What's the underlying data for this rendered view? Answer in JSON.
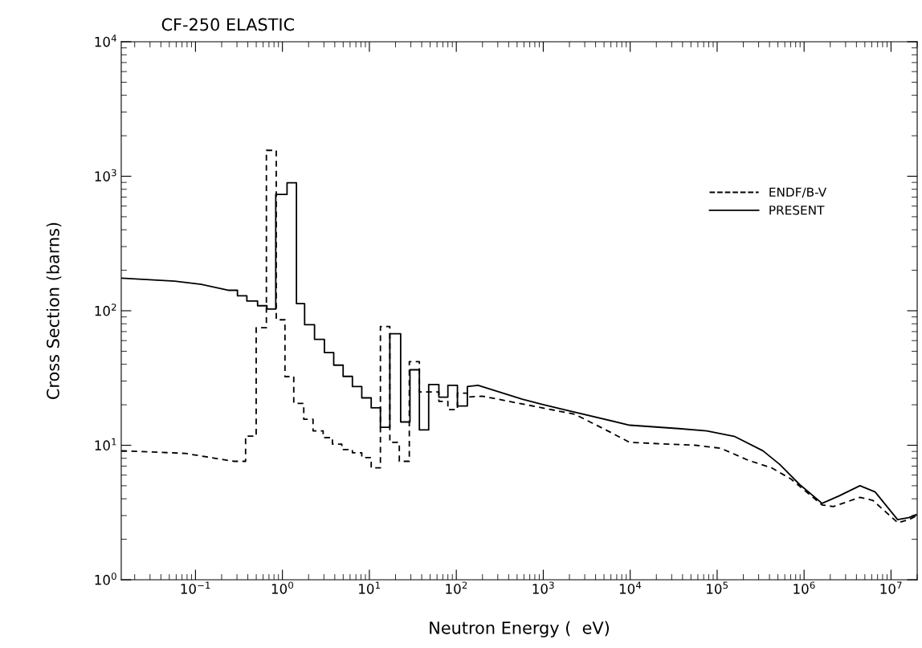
{
  "chart_data": {
    "type": "line",
    "title": "CF-250 ELASTIC",
    "xlabel": "Neutron Energy (  eV)",
    "ylabel": "Cross Section (barns)",
    "log": "xy",
    "grid": false,
    "legend": "top right",
    "xlim": [
      0.014,
      20000000.0
    ],
    "ylim": [
      1,
      10000
    ],
    "xticks": [
      {
        "value": 0.1,
        "label": "10$^{−1}$"
      },
      {
        "value": 1,
        "label": "10$^{0}$"
      },
      {
        "value": 10,
        "label": "10$^{1}$"
      },
      {
        "value": 100,
        "label": "10$^{2}$"
      },
      {
        "value": 1000,
        "label": "10$^{3}$"
      },
      {
        "value": 10000,
        "label": "10$^{4}$"
      },
      {
        "value": 100000,
        "label": "10$^{5}$"
      },
      {
        "value": 1000000,
        "label": "10$^{6}$"
      },
      {
        "value": 10000000,
        "label": "10$^{7}$"
      }
    ],
    "yticks": [
      {
        "value": 1,
        "label": "10$^{0}$"
      },
      {
        "value": 10,
        "label": "10$^{1}$"
      },
      {
        "value": 100,
        "label": "10$^{2}$"
      },
      {
        "value": 1000,
        "label": "10$^{3}$"
      },
      {
        "value": 10000,
        "label": "10$^{4}$"
      }
    ],
    "series": [
      {
        "name": "ENDF/B-V",
        "color": "#000000",
        "line_style": "dashed",
        "x": [
          0.014,
          0.0765,
          0.274,
          0.377,
          0.377,
          0.499,
          0.499,
          0.654,
          0.654,
          0.849,
          0.849,
          1.07,
          1.07,
          1.35,
          1.35,
          1.76,
          1.76,
          2.25,
          2.25,
          2.94,
          2.94,
          3.76,
          3.76,
          4.82,
          4.82,
          6.38,
          6.38,
          8.18,
          8.18,
          10.5,
          10.5,
          13.4,
          13.4,
          17.2,
          17.2,
          22.1,
          22.1,
          28.8,
          28.8,
          37.6,
          37.6,
          63,
          63,
          80,
          80,
          103,
          103,
          134,
          134,
          198,
          2310,
          5640,
          9860,
          56400,
          110000,
          232000,
          422000,
          710000,
          1610000,
          2170000,
          4390000,
          6150000,
          12000000,
          16000000,
          19800000
        ],
        "values": [
          9.1,
          8.7,
          7.6,
          7.6,
          11.7,
          11.7,
          74.7,
          74.7,
          1557,
          1557,
          85.7,
          85.7,
          32.4,
          32.4,
          20.5,
          20.5,
          15.6,
          15.6,
          12.8,
          12.8,
          11.4,
          11.4,
          10.2,
          10.2,
          9.3,
          9.3,
          8.8,
          8.8,
          8.1,
          8.1,
          6.8,
          6.8,
          76.3,
          76.3,
          10.5,
          10.5,
          7.6,
          7.6,
          41.8,
          41.8,
          24.9,
          24.9,
          21.2,
          21.2,
          18.4,
          18.4,
          24.4,
          24.4,
          22.8,
          23.2,
          17.0,
          12.7,
          10.5,
          10.0,
          9.5,
          7.7,
          6.8,
          5.6,
          3.6,
          3.5,
          4.1,
          3.9,
          2.65,
          2.8,
          3.0
        ]
      },
      {
        "name": "PRESENT",
        "color": "#000000",
        "line_style": "solid",
        "x": [
          0.014,
          0.0577,
          0.117,
          0.237,
          0.304,
          0.304,
          0.39,
          0.39,
          0.518,
          0.518,
          0.664,
          0.664,
          0.838,
          0.838,
          1.13,
          1.13,
          1.45,
          1.45,
          1.8,
          1.8,
          2.34,
          2.34,
          3.04,
          3.04,
          3.89,
          3.89,
          4.99,
          4.99,
          6.38,
          6.38,
          8.18,
          8.18,
          10.5,
          10.5,
          13.4,
          13.4,
          17.2,
          17.2,
          22.9,
          22.9,
          29.3,
          29.3,
          37.6,
          37.6,
          48.1,
          48.1,
          63,
          63,
          80,
          80,
          103,
          103,
          134,
          134,
          178,
          573,
          975,
          9860,
          36100,
          75900,
          160000,
          336000,
          525000,
          891000,
          1610000,
          2520000,
          4390000,
          6560000,
          11900000,
          16000000,
          19400000
        ],
        "values": [
          175,
          166,
          157,
          142,
          142,
          129,
          129,
          118,
          118,
          109,
          109,
          103,
          103,
          732,
          732,
          893,
          893,
          113,
          113,
          78.7,
          78.7,
          61.3,
          61.3,
          48.9,
          48.9,
          39.4,
          39.4,
          32.5,
          32.5,
          27.3,
          27.3,
          22.5,
          22.5,
          19.0,
          19.0,
          13.6,
          13.6,
          67.5,
          67.5,
          14.9,
          14.9,
          36.4,
          36.4,
          13.0,
          13.0,
          28.3,
          28.3,
          22.8,
          22.8,
          27.9,
          27.9,
          19.6,
          19.6,
          27.3,
          27.9,
          22.0,
          20.1,
          14.1,
          13.3,
          12.8,
          11.6,
          9.1,
          7.2,
          5.1,
          3.7,
          4.2,
          5.0,
          4.5,
          2.8,
          2.9,
          3.05
        ]
      }
    ]
  }
}
